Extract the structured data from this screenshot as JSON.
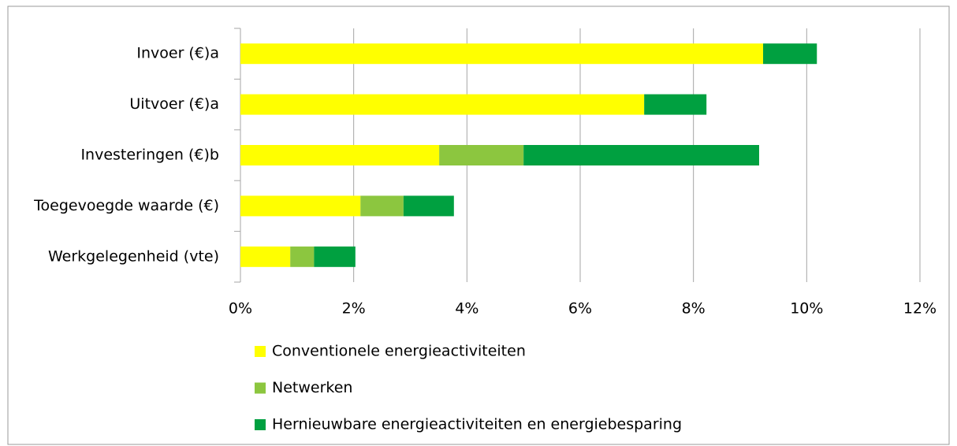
{
  "chart_data": {
    "type": "stacked-bar-horizontal",
    "categories": [
      "Invoer (€)a",
      "Uitvoer (€)a",
      "Investeringen (€)b",
      "Toegevoegde waarde (€)",
      "Werkgelegenheid (vte)"
    ],
    "series": [
      {
        "name": "Conventionele energieactiviteiten",
        "color": "#ffff00",
        "values": [
          9.23,
          7.13,
          3.51,
          2.12,
          0.88
        ]
      },
      {
        "name": "Netwerken",
        "color": "#8cc63f",
        "values": [
          0,
          0,
          1.49,
          0.76,
          0.42
        ]
      },
      {
        "name": "Hernieuwbare energieactiviteiten en energiebesparing",
        "color": "#00a040",
        "values": [
          0.95,
          1.1,
          4.16,
          0.89,
          0.73
        ]
      }
    ],
    "xlim": [
      0,
      12
    ],
    "xticks": [
      {
        "value": 0,
        "label": "0%"
      },
      {
        "value": 2,
        "label": "2%"
      },
      {
        "value": 4,
        "label": "4%"
      },
      {
        "value": 6,
        "label": "6%"
      },
      {
        "value": 8,
        "label": "8%"
      },
      {
        "value": 10,
        "label": "10%"
      },
      {
        "value": 12,
        "label": "12%"
      }
    ],
    "grid": true,
    "legend": "bottom"
  }
}
